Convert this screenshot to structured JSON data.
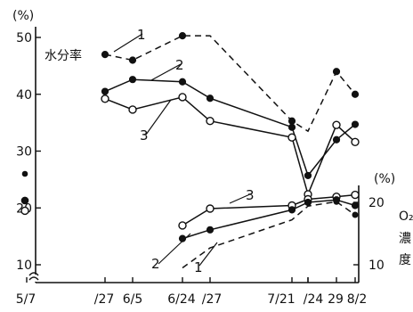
{
  "chart_data": {
    "type": "line",
    "title": "",
    "x_tick_labels": [
      "5/7",
      "/27",
      "6/5",
      "6/24",
      "/27",
      "7/21",
      "24",
      "/24",
      "29",
      "8/2"
    ],
    "y_left": {
      "unit": "(%)",
      "ticks": [
        "10",
        "20",
        "30",
        "40",
        "50"
      ],
      "label": "水分率",
      "range": [
        7,
        53
      ]
    },
    "y_right": {
      "unit": "(%)",
      "ticks": [
        "10",
        "20"
      ],
      "label_chars": [
        "O₂",
        "濃",
        "度"
      ],
      "range": [
        0,
        30
      ]
    },
    "series_number_labels": [
      "1",
      "2",
      "3",
      "3",
      "2",
      "1"
    ],
    "series": [
      {
        "name": "1",
        "group": "moisture",
        "axis": "left",
        "style": "dashed",
        "marker": "filled",
        "points": [
          [
            "5/27",
            47
          ],
          [
            "6/5",
            46
          ],
          [
            "6/24",
            50.3
          ],
          [
            "6/27",
            50.3
          ],
          [
            "7/21",
            35.3
          ],
          [
            "7/24",
            33.5
          ],
          [
            "7/29",
            44
          ],
          [
            "8/2",
            40
          ]
        ]
      },
      {
        "name": "2",
        "group": "moisture",
        "axis": "left",
        "style": "solid",
        "marker": "filled",
        "points": [
          [
            "5/27",
            40.5
          ],
          [
            "6/5",
            42.6
          ],
          [
            "6/24",
            42.2
          ],
          [
            "6/27",
            39.3
          ],
          [
            "7/21",
            34.2
          ],
          [
            "7/24",
            25.7
          ],
          [
            "7/29",
            32
          ],
          [
            "8/2",
            34.7
          ]
        ]
      },
      {
        "name": "3",
        "group": "moisture",
        "axis": "left",
        "style": "solid",
        "marker": "open",
        "points": [
          [
            "5/27",
            39.2
          ],
          [
            "6/5",
            37.3
          ],
          [
            "6/24",
            39.5
          ],
          [
            "6/27",
            35.3
          ],
          [
            "7/21",
            32.4
          ],
          [
            "7/24",
            22.4
          ],
          [
            "7/29",
            34.6
          ],
          [
            "8/2",
            31.6
          ]
        ]
      },
      {
        "name": "3",
        "group": "o2",
        "axis": "right",
        "style": "solid",
        "marker": "open",
        "points": [
          [
            "6/24",
            16.3
          ],
          [
            "6/27",
            19
          ],
          [
            "7/21",
            19.5
          ],
          [
            "7/24",
            20.5
          ],
          [
            "7/29",
            20.9
          ],
          [
            "8/2",
            21.2
          ]
        ]
      },
      {
        "name": "2",
        "group": "o2",
        "axis": "right",
        "style": "solid",
        "marker": "filled",
        "points": [
          [
            "6/24",
            14.2
          ],
          [
            "6/27",
            15.6
          ],
          [
            "7/21",
            18.8
          ],
          [
            "7/24",
            20
          ],
          [
            "7/29",
            20.4
          ],
          [
            "8/2",
            19.5
          ]
        ]
      },
      {
        "name": "1",
        "group": "o2",
        "axis": "right",
        "style": "dashed",
        "marker": "filled",
        "points": [
          [
            "6/24",
            9.5
          ],
          [
            "6/27",
            12.7
          ],
          [
            "7/21",
            17.2
          ],
          [
            "7/24",
            19.4
          ],
          [
            "7/29",
            20.1
          ],
          [
            "8/2",
            18
          ]
        ]
      }
    ],
    "single_points_5_7": [
      {
        "axis": "left",
        "marker": "filled",
        "value": 26
      },
      {
        "axis": "left",
        "marker": "filled",
        "value": 21.3
      },
      {
        "axis": "left",
        "marker": "open",
        "value": 19.5
      }
    ]
  }
}
